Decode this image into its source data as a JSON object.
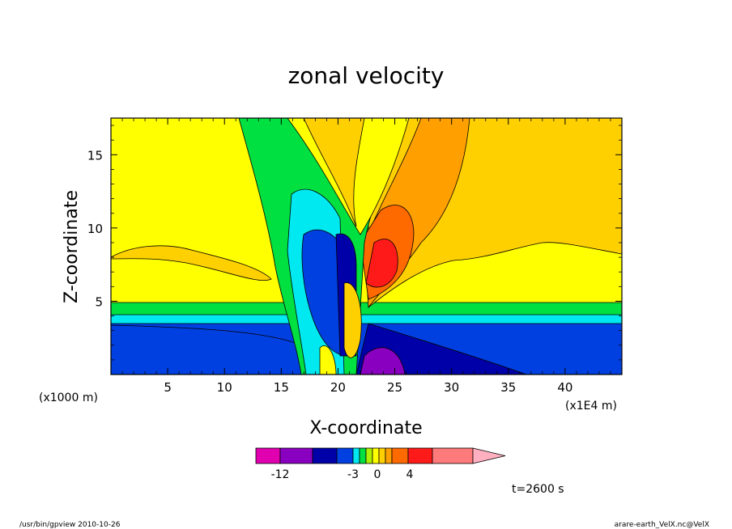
{
  "chart_data": {
    "type": "heatmap",
    "title": "zonal velocity",
    "xlabel": "X-coordinate",
    "ylabel": "Z-coordinate",
    "x_unit_left": "(x1000 m)",
    "x_unit_right": "(x1E4 m)",
    "xlim": [
      0,
      45
    ],
    "ylim": [
      0,
      17.5
    ],
    "x_ticks": [
      5,
      10,
      15,
      20,
      25,
      30,
      35,
      40
    ],
    "y_ticks": [
      5,
      10,
      15
    ],
    "colorbar": {
      "colors": [
        "#e000b0",
        "#8a00c0",
        "#0000a8",
        "#0040e0",
        "#00e8f0",
        "#00e040",
        "#aef000",
        "#ffff00",
        "#ffd000",
        "#ffa000",
        "#ff6a00",
        "#ff1a1a",
        "#ff7a7a",
        "#ffb0c0"
      ],
      "labels": [
        "-12",
        "-3",
        "0",
        "4"
      ]
    },
    "time_label": "t=2600 s"
  },
  "footer": {
    "left": "/usr/bin/gpview   2010-10-26",
    "right": "arare-earth_VelX.nc@VelX"
  }
}
